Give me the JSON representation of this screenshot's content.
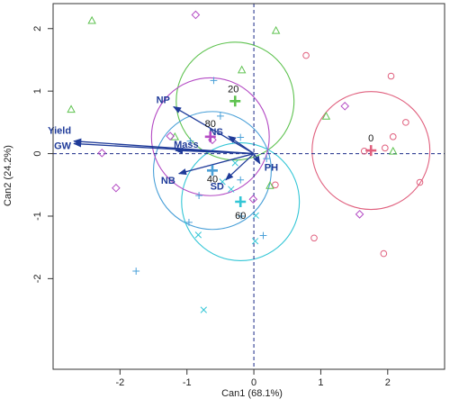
{
  "chart_data": {
    "type": "scatter",
    "xlabel": "Can1 (68.1%)",
    "ylabel": "Can2 (24.2%)",
    "xlim": [
      -3.0,
      2.85
    ],
    "ylim": [
      -3.45,
      2.4
    ],
    "x_ticks": [
      -2,
      -1,
      0,
      1,
      2
    ],
    "y_ticks": [
      -2,
      -1,
      0,
      1,
      2
    ],
    "x_tick_labels": [
      "-2",
      "-1",
      "0",
      "1",
      "2"
    ],
    "y_tick_labels": [
      "-2",
      "-1",
      "0",
      "1",
      "2"
    ],
    "reference_lines": {
      "x": 0,
      "y": 0,
      "style": "dashed"
    },
    "groups": [
      {
        "name": "0",
        "color": "#e0607e",
        "marker": "circle",
        "centroid": [
          1.75,
          0.05
        ],
        "radius": 0.88,
        "points": [
          [
            0.78,
            1.57
          ],
          [
            2.05,
            1.24
          ],
          [
            2.27,
            0.5
          ],
          [
            2.08,
            0.27
          ],
          [
            1.65,
            0.04
          ],
          [
            1.96,
            0.09
          ],
          [
            2.48,
            -0.46
          ],
          [
            0.9,
            -1.35
          ],
          [
            1.94,
            -1.6
          ],
          [
            0.32,
            -0.5
          ]
        ]
      },
      {
        "name": "20",
        "color": "#5ec24f",
        "marker": "triangle",
        "centroid": [
          -0.28,
          0.84
        ],
        "radius": 0.88,
        "points": [
          [
            -2.42,
            2.13
          ],
          [
            0.33,
            1.97
          ],
          [
            -0.18,
            1.34
          ],
          [
            -2.73,
            0.71
          ],
          [
            -1.18,
            0.27
          ],
          [
            1.08,
            0.6
          ],
          [
            2.08,
            0.04
          ],
          [
            0.24,
            -0.51
          ]
        ]
      },
      {
        "name": "40",
        "color": "#4aa0d8",
        "marker": "plus",
        "centroid": [
          -0.62,
          -0.27
        ],
        "radius": 0.88,
        "points": [
          [
            -0.6,
            1.17
          ],
          [
            -0.5,
            0.6
          ],
          [
            -0.2,
            0.26
          ],
          [
            -0.95,
            0.2
          ],
          [
            -0.82,
            -0.67
          ],
          [
            -0.97,
            -1.1
          ],
          [
            -0.19,
            -1.0
          ],
          [
            0.14,
            -1.31
          ],
          [
            -1.76,
            -1.88
          ],
          [
            -0.2,
            -0.42
          ],
          [
            0.19,
            -0.08
          ]
        ]
      },
      {
        "name": "60",
        "color": "#33c6d6",
        "marker": "cross",
        "centroid": [
          -0.2,
          -0.77
        ],
        "radius": 0.88,
        "points": [
          [
            -0.47,
            -0.45
          ],
          [
            -0.34,
            -0.57
          ],
          [
            -0.83,
            -1.3
          ],
          [
            0.02,
            -1.4
          ],
          [
            0.03,
            -0.99
          ],
          [
            -0.75,
            -2.5
          ],
          [
            -0.28,
            -0.15
          ]
        ]
      },
      {
        "name": "80",
        "color": "#b44bc4",
        "marker": "diamond",
        "centroid": [
          -0.65,
          0.27
        ],
        "radius": 0.88,
        "points": [
          [
            -0.87,
            2.22
          ],
          [
            -1.25,
            0.28
          ],
          [
            -0.62,
            0.22
          ],
          [
            -2.27,
            0.01
          ],
          [
            -2.06,
            -0.55
          ],
          [
            1.36,
            0.76
          ],
          [
            1.58,
            -0.97
          ],
          [
            -0.01,
            -0.73
          ]
        ]
      }
    ],
    "arrows": [
      {
        "name": "Yield",
        "x": -2.69,
        "y": 0.2
      },
      {
        "name": "GW",
        "x": -2.69,
        "y": 0.16
      },
      {
        "name": "NP",
        "x": -1.2,
        "y": 0.75
      },
      {
        "name": "NS",
        "x": -0.38,
        "y": 0.28
      },
      {
        "name": "Mass",
        "x": -1.17,
        "y": 0.05
      },
      {
        "name": "NB",
        "x": -1.12,
        "y": -0.32
      },
      {
        "name": "SD",
        "x": -0.42,
        "y": -0.42
      },
      {
        "name": "PH",
        "x": 0.09,
        "y": -0.16
      }
    ]
  }
}
